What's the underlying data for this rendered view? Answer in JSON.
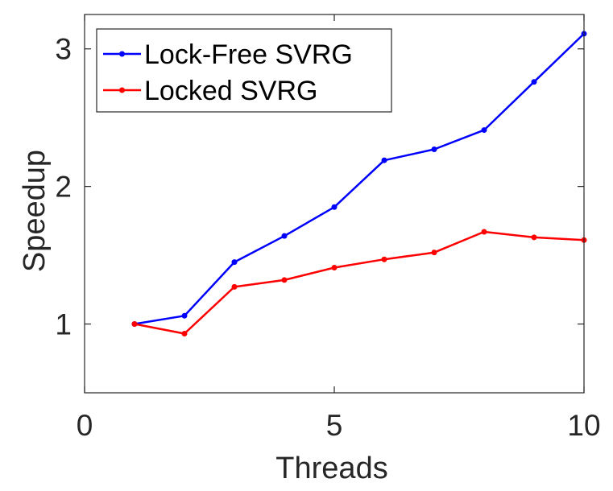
{
  "chart_data": {
    "type": "line",
    "title": "",
    "xlabel": "Threads",
    "ylabel": "Speedup",
    "xlim": [
      0,
      10
    ],
    "ylim": [
      0.5,
      3.25
    ],
    "xticks": [
      0,
      5,
      10
    ],
    "yticks": [
      1,
      2,
      3
    ],
    "grid": false,
    "legend_position": "top-left",
    "series": [
      {
        "name": "Lock-Free SVRG",
        "color": "#0000ff",
        "x": [
          1,
          2,
          3,
          4,
          5,
          6,
          7,
          8,
          9,
          10
        ],
        "y": [
          1.0,
          1.06,
          1.45,
          1.64,
          1.85,
          2.19,
          2.27,
          2.41,
          2.76,
          3.11
        ]
      },
      {
        "name": "Locked SVRG",
        "color": "#ff0000",
        "x": [
          1,
          2,
          3,
          4,
          5,
          6,
          7,
          8,
          9,
          10
        ],
        "y": [
          1.0,
          0.93,
          1.27,
          1.32,
          1.41,
          1.47,
          1.52,
          1.67,
          1.63,
          1.61
        ]
      }
    ]
  }
}
